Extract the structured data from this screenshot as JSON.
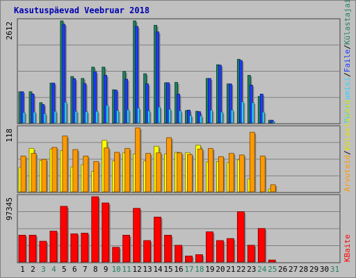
{
  "chart_data": {
    "type": "bar",
    "title": "Kasutuspäevad Veebruar 2018",
    "days": [
      "1",
      "2",
      "3",
      "4",
      "5",
      "6",
      "7",
      "8",
      "9",
      "10",
      "11",
      "12",
      "13",
      "14",
      "15",
      "16",
      "17",
      "18",
      "19",
      "20",
      "21",
      "22",
      "23",
      "24",
      "25",
      "26",
      "27",
      "28",
      "29",
      "30",
      "31"
    ],
    "weekend_days": [
      "3",
      "4",
      "10",
      "11",
      "17",
      "18",
      "24",
      "25",
      "31"
    ],
    "panels": [
      {
        "id": "visits",
        "max_label": "2612",
        "ymax": 2612,
        "series": [
          {
            "name": "Külastajaid",
            "color": "#1e8060",
            "values": [
              800,
              800,
              520,
              1020,
              2612,
              1190,
              1140,
              1430,
              1430,
              850,
              1320,
              2612,
              1260,
              2500,
              1030,
              1040,
              320,
              300,
              1140,
              1490,
              1000,
              1630,
              1220,
              680,
              70,
              0,
              0,
              0,
              0,
              0,
              0
            ]
          },
          {
            "name": "Faile",
            "color": "#1e3cff",
            "values": [
              800,
              740,
              470,
              1020,
              2520,
              1130,
              1010,
              1310,
              1220,
              840,
              1120,
              2470,
              1000,
              2330,
              1030,
              740,
              330,
              290,
              1140,
              1480,
              1000,
              1600,
              970,
              740,
              70,
              0,
              0,
              0,
              0,
              0,
              0
            ]
          },
          {
            "name": "Pöördumisi",
            "color": "#30d0ff",
            "values": [
              270,
              280,
              240,
              300,
              530,
              300,
              290,
              300,
              450,
              320,
              340,
              380,
              310,
              410,
              350,
              310,
              190,
              180,
              330,
              280,
              330,
              540,
              520,
              280,
              30,
              0,
              0,
              0,
              0,
              0,
              0
            ]
          }
        ],
        "axis_labels": [
          "Pöördumisi",
          "/",
          "Faile",
          "/",
          "Külastajaid"
        ]
      },
      {
        "id": "hosts",
        "max_label": "118",
        "ymax": 118,
        "series": [
          {
            "name": "Külastajaid",
            "color": "#ffff00",
            "values": [
              45,
              80,
              58,
              79,
              76,
              46,
              50,
              38,
              95,
              57,
              72,
              70,
              57,
              84,
              70,
              73,
              72,
              86,
              55,
              56,
              54,
              59,
              24,
              0,
              5,
              0,
              0,
              0,
              0,
              0,
              0
            ]
          },
          {
            "name": "Arvuteid",
            "color": "#ff9900",
            "values": [
              66,
              71,
              60,
              82,
              103,
              78,
              66,
              56,
              81,
              73,
              80,
              118,
              71,
              72,
              100,
              72,
              69,
              79,
              80,
              65,
              71,
              68,
              110,
              66,
              13,
              0,
              0,
              0,
              0,
              0,
              0
            ]
          }
        ],
        "axis_labels": [
          "Arvuteid",
          "/",
          "Külastajaid"
        ]
      },
      {
        "id": "kbytes",
        "max_label": "97345",
        "ymax": 97345,
        "series": [
          {
            "name": "KBaite",
            "color": "#ff0000",
            "values": [
              40000,
              40000,
              31000,
              46000,
              83000,
              42000,
              43000,
              97345,
              88000,
              22000,
              40000,
              80000,
              32000,
              67000,
              40000,
              25000,
              9000,
              11000,
              45000,
              32000,
              35000,
              75000,
              25000,
              50000,
              3000,
              0,
              0,
              0,
              0,
              0,
              0
            ]
          }
        ],
        "axis_labels": [
          "KBaite"
        ]
      }
    ]
  }
}
